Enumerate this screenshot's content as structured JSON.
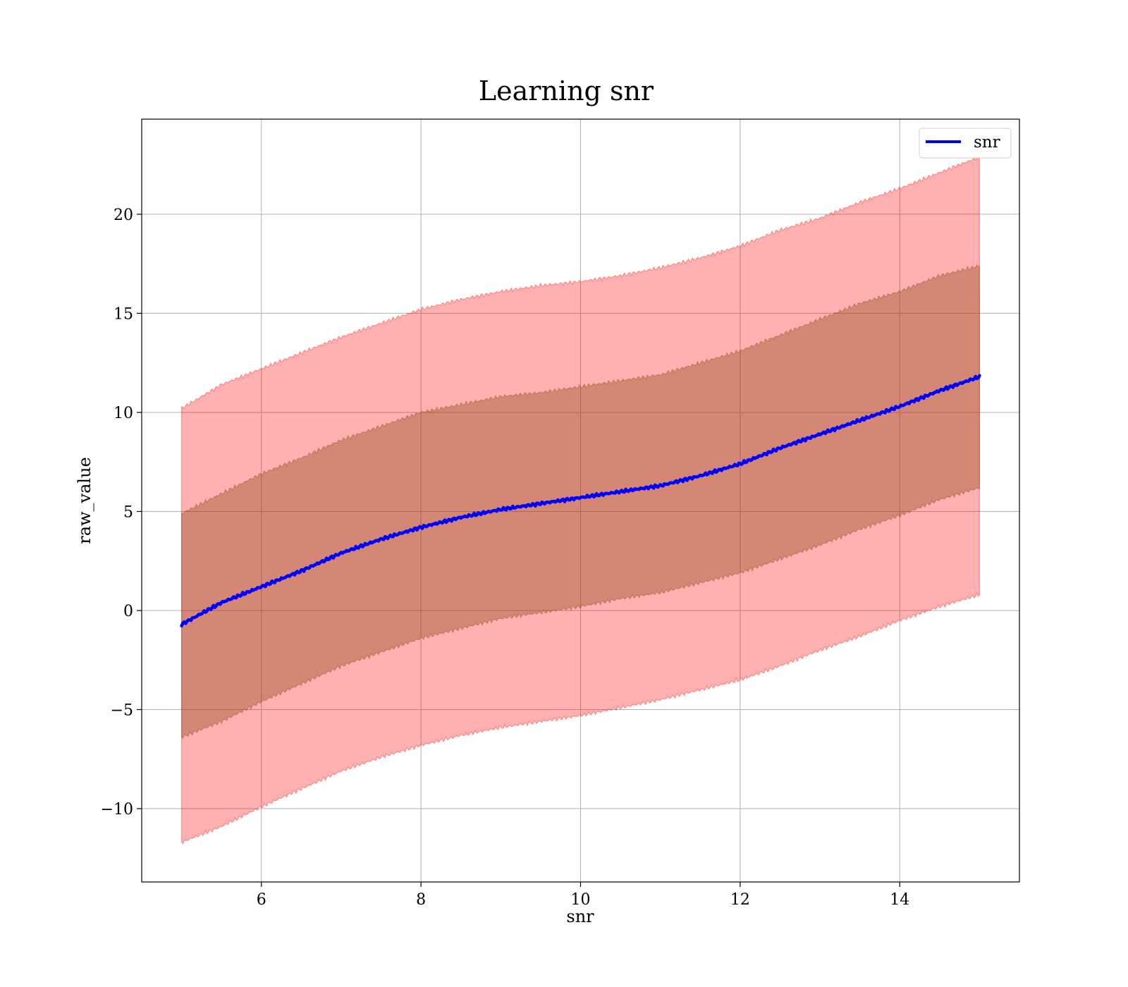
{
  "chart_data": {
    "type": "line",
    "title": "Learning snr",
    "xlabel": "snr",
    "ylabel": "raw_value",
    "xlim": [
      4.5,
      15.5
    ],
    "ylim": [
      -13.7,
      24.8
    ],
    "xticks": [
      6,
      8,
      10,
      12,
      14
    ],
    "xtick_labels": [
      "6",
      "8",
      "10",
      "12",
      "14"
    ],
    "yticks": [
      -10,
      -5,
      0,
      5,
      10,
      15,
      20
    ],
    "ytick_labels": [
      "−10",
      "−5",
      "0",
      "5",
      "10",
      "15",
      "20"
    ],
    "grid": true,
    "legend_position": "top-right",
    "colors": {
      "line": "#0000ff",
      "outer_band": "#ff0000",
      "inner_band": "#8b4513",
      "grid": "#b0b0b0"
    },
    "x": [
      5,
      5.5,
      6,
      6.5,
      7,
      7.5,
      8,
      8.5,
      9,
      9.5,
      10,
      10.5,
      11,
      11.5,
      12,
      12.5,
      13,
      13.5,
      14,
      14.5,
      15
    ],
    "series": [
      {
        "name": "snr",
        "values": [
          -0.7,
          0.4,
          1.2,
          2.0,
          2.9,
          3.6,
          4.2,
          4.7,
          5.1,
          5.4,
          5.7,
          6.0,
          6.3,
          6.8,
          7.4,
          8.2,
          8.9,
          9.6,
          10.3,
          11.1,
          11.8
        ]
      }
    ],
    "bands": [
      {
        "kind": "outer",
        "lower": [
          -11.7,
          -10.9,
          -9.9,
          -9.0,
          -8.1,
          -7.4,
          -6.8,
          -6.3,
          -5.9,
          -5.6,
          -5.3,
          -4.9,
          -4.5,
          -4.0,
          -3.5,
          -2.8,
          -2.0,
          -1.3,
          -0.5,
          0.2,
          0.8
        ],
        "upper": [
          10.2,
          11.4,
          12.2,
          13.0,
          13.8,
          14.5,
          15.2,
          15.7,
          16.1,
          16.4,
          16.6,
          16.9,
          17.3,
          17.8,
          18.4,
          19.2,
          19.8,
          20.6,
          21.3,
          22.1,
          22.9
        ]
      },
      {
        "kind": "inner",
        "lower": [
          -6.4,
          -5.6,
          -4.6,
          -3.7,
          -2.8,
          -2.1,
          -1.4,
          -0.9,
          -0.4,
          -0.1,
          0.2,
          0.6,
          0.9,
          1.4,
          1.9,
          2.6,
          3.3,
          4.1,
          4.8,
          5.6,
          6.2
        ],
        "upper": [
          4.9,
          5.9,
          6.9,
          7.7,
          8.6,
          9.3,
          10.0,
          10.4,
          10.8,
          11.0,
          11.3,
          11.6,
          11.9,
          12.5,
          13.1,
          13.9,
          14.7,
          15.5,
          16.1,
          16.9,
          17.4
        ]
      }
    ]
  }
}
